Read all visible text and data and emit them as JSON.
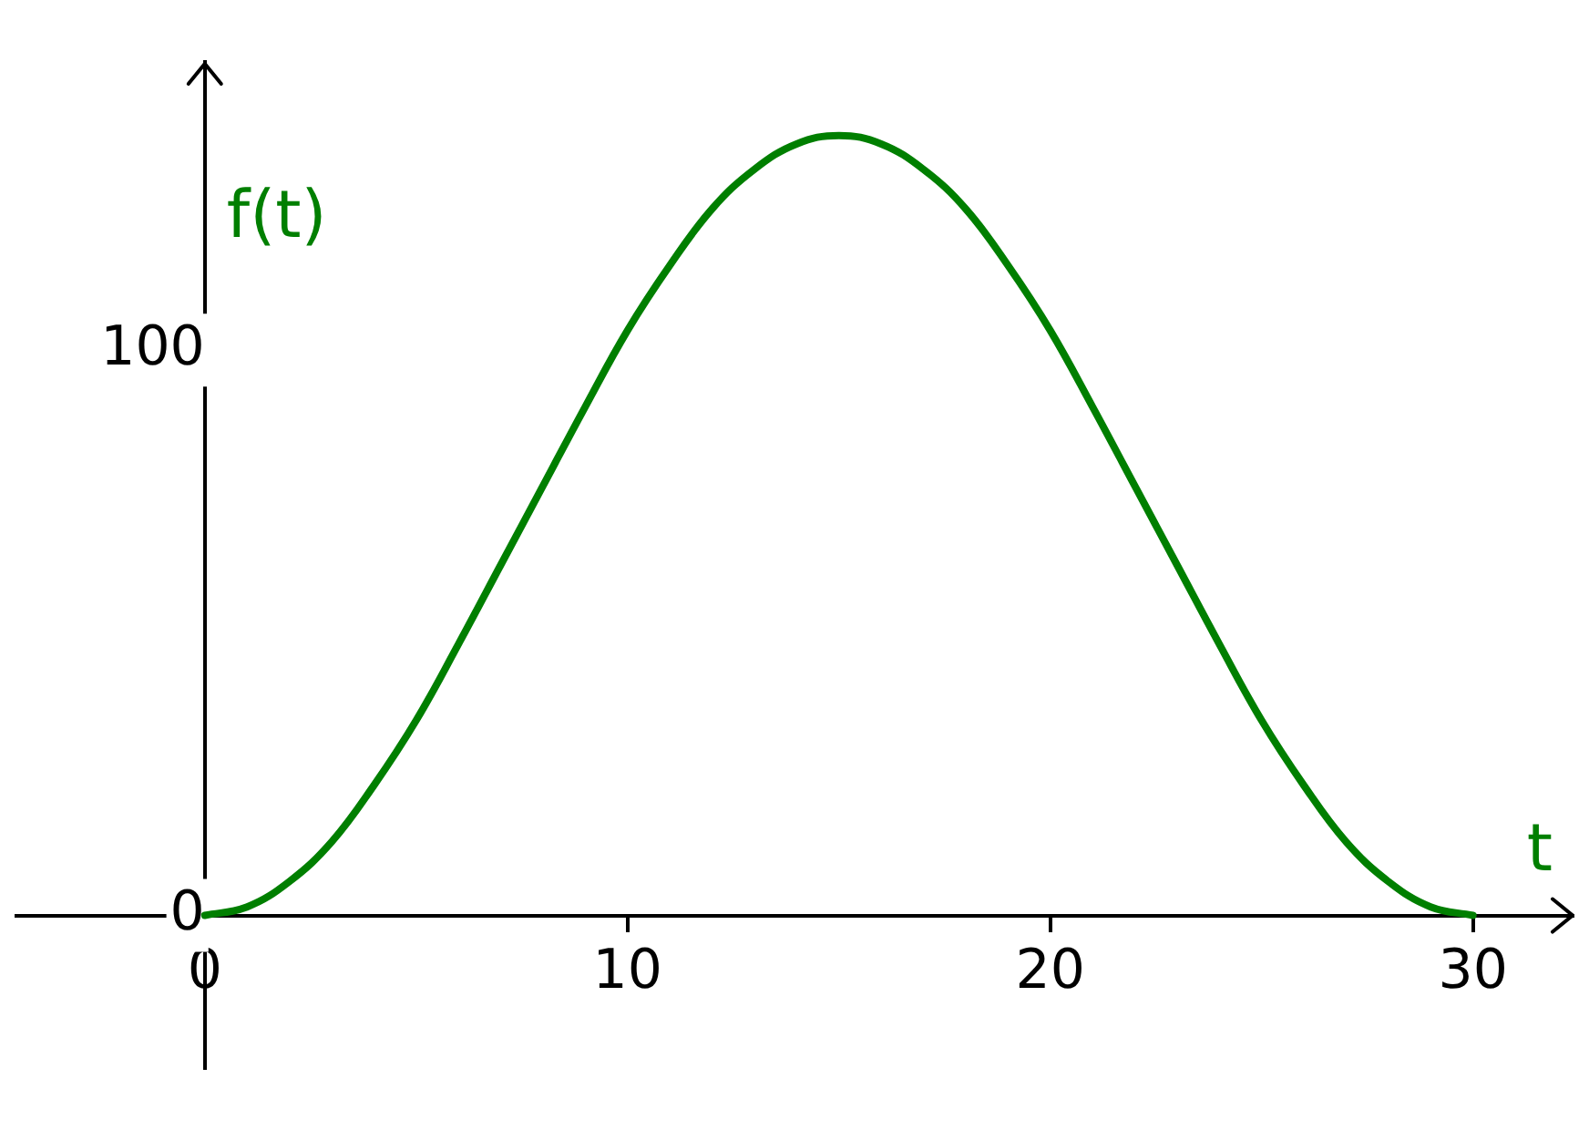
{
  "chart_data": {
    "type": "line",
    "xlabel": "t",
    "ylabel": "f(t)",
    "x": [
      0,
      1,
      2,
      3,
      4,
      5,
      6,
      7,
      8,
      9,
      10,
      11,
      12,
      13,
      14,
      15,
      16,
      17,
      18,
      19,
      20,
      21,
      22,
      23,
      24,
      25,
      26,
      27,
      28,
      29,
      30
    ],
    "series": [
      {
        "color": "#007f00",
        "values": [
          0,
          1.5,
          6,
          13,
          23,
          34.5,
          48,
          62,
          76,
          90,
          103.5,
          115,
          125,
          132,
          136.5,
          138,
          136.5,
          132,
          125,
          115,
          103.5,
          90,
          76,
          62,
          48,
          34.5,
          23,
          13,
          6,
          1.5,
          0
        ]
      }
    ],
    "xlim": [
      -4.5,
      32.4
    ],
    "ylim": [
      -27,
      151
    ],
    "xticks": [
      0,
      10,
      20,
      30
    ],
    "yticks": [
      0,
      100
    ],
    "grid": false,
    "legend": false,
    "marker": "none",
    "line_style": "solid"
  }
}
